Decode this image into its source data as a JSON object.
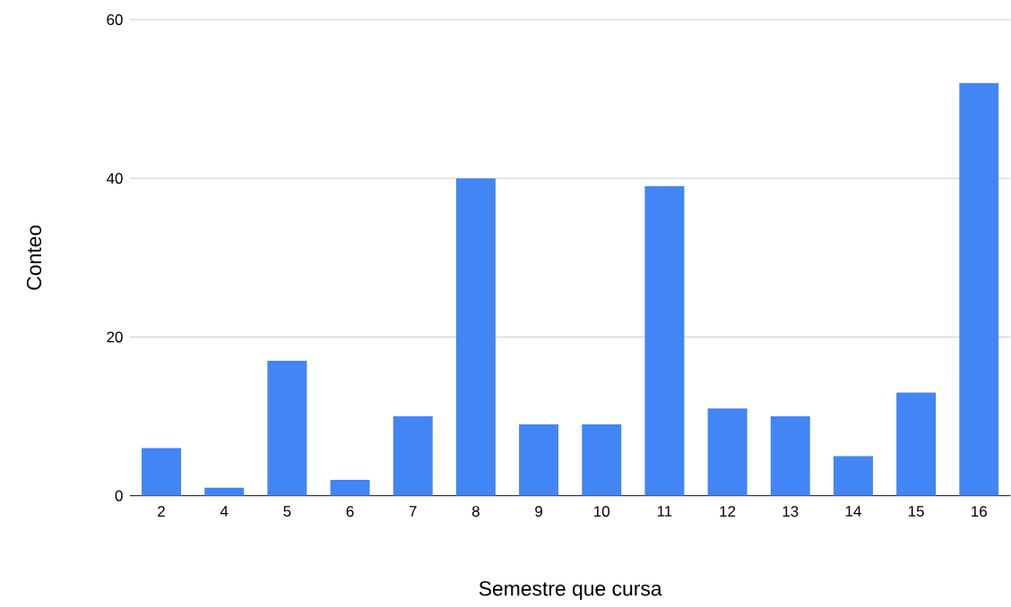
{
  "chart_data": {
    "type": "bar",
    "xlabel": "Semestre que cursa",
    "ylabel": "Conteo",
    "categories": [
      "2",
      "4",
      "5",
      "6",
      "7",
      "8",
      "9",
      "10",
      "11",
      "12",
      "13",
      "14",
      "15",
      "16"
    ],
    "values": [
      6,
      1,
      17,
      2,
      10,
      40,
      9,
      9,
      39,
      11,
      10,
      5,
      13,
      52
    ],
    "color": "#4285f4",
    "ylim": [
      0,
      60
    ],
    "yticks": [
      0,
      20,
      40,
      60
    ],
    "grid": "y"
  }
}
